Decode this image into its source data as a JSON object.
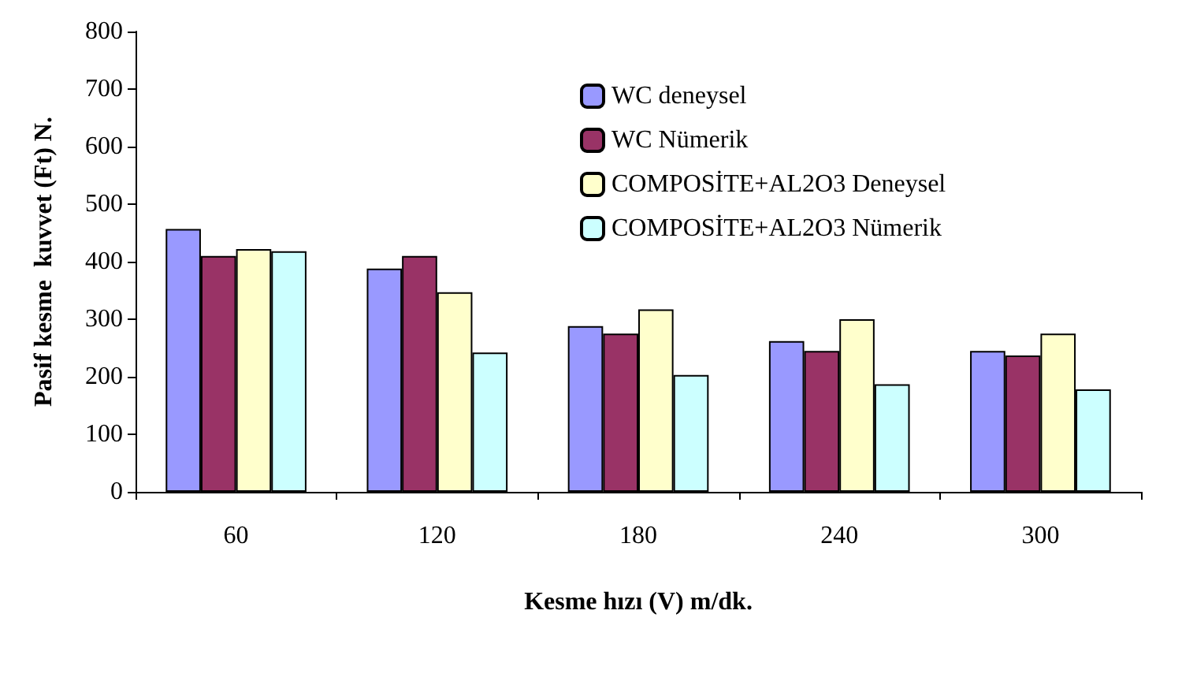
{
  "chart_data": {
    "type": "bar",
    "xlabel": "Kesme hızı (V) m/dk.",
    "ylabel": "Pasif kesme  kuvvet (Ft) N.",
    "categories": [
      "60",
      "120",
      "180",
      "240",
      "300"
    ],
    "series": [
      {
        "name": "WC deneysel",
        "color": "#9999ff",
        "values": [
          457,
          388,
          288,
          262,
          245
        ]
      },
      {
        "name": "WC Nümerik",
        "color": "#993366",
        "values": [
          410,
          410,
          275,
          245,
          237
        ]
      },
      {
        "name": "COMPOSİTE+AL2O3 Deneysel",
        "color": "#ffffcc",
        "values": [
          422,
          347,
          317,
          300,
          275
        ]
      },
      {
        "name": "COMPOSİTE+AL2O3 Nümerik",
        "color": "#ccffff",
        "values": [
          418,
          242,
          203,
          187,
          178
        ]
      }
    ],
    "ylim": [
      0,
      800
    ],
    "yticks": [
      0,
      100,
      200,
      300,
      400,
      500,
      600,
      700,
      800
    ],
    "grid": false,
    "legend": "top right"
  }
}
